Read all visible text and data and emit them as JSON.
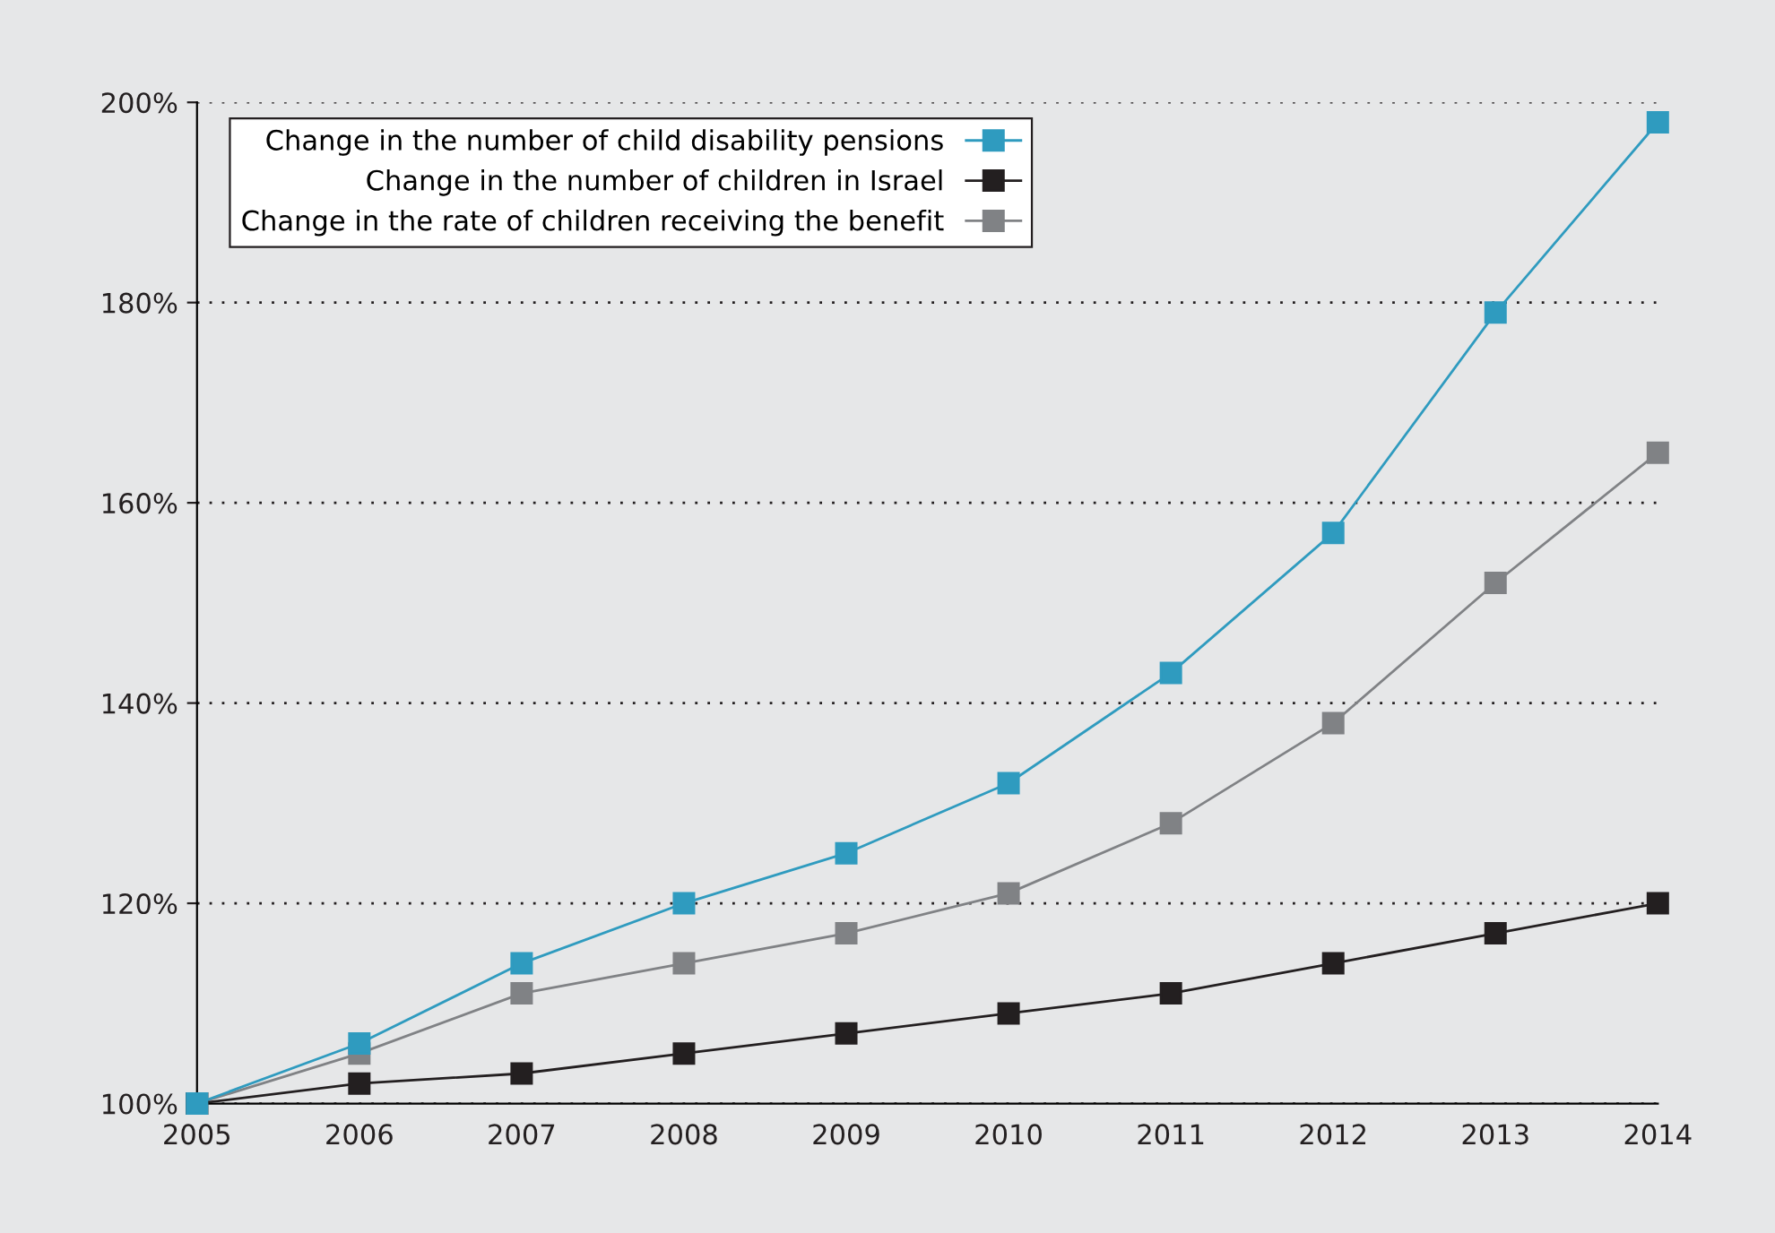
{
  "chart_data": {
    "type": "line",
    "x": [
      2005,
      2006,
      2007,
      2008,
      2009,
      2010,
      2011,
      2012,
      2013,
      2014
    ],
    "series": [
      {
        "name": "Change in the number of child disability pensions",
        "color": "#2f9bbf",
        "values": [
          100,
          106,
          114,
          120,
          125,
          132,
          143,
          157,
          179,
          198
        ]
      },
      {
        "name": "Change in the number of children in Israel",
        "color": "#231f20",
        "values": [
          100,
          102,
          103,
          105,
          107,
          109,
          111,
          114,
          117,
          120
        ]
      },
      {
        "name": "Change in the rate of children receiving the benefit",
        "color": "#808285",
        "values": [
          100,
          105,
          111,
          114,
          117,
          121,
          128,
          138,
          152,
          165
        ]
      }
    ],
    "xlim": [
      2005,
      2014
    ],
    "xticks": [
      2005,
      2006,
      2007,
      2008,
      2009,
      2010,
      2011,
      2012,
      2013,
      2014
    ],
    "ylim": [
      100,
      200
    ],
    "yticks": [
      {
        "value": 100,
        "label": "100%"
      },
      {
        "value": 120,
        "label": "120%"
      },
      {
        "value": 140,
        "label": "140%"
      },
      {
        "value": 160,
        "label": "160%"
      },
      {
        "value": 180,
        "label": "180%"
      },
      {
        "value": 200,
        "label": "200%"
      }
    ],
    "grid": "y",
    "legend": "top left",
    "marker": "square",
    "line_style": "solid"
  }
}
